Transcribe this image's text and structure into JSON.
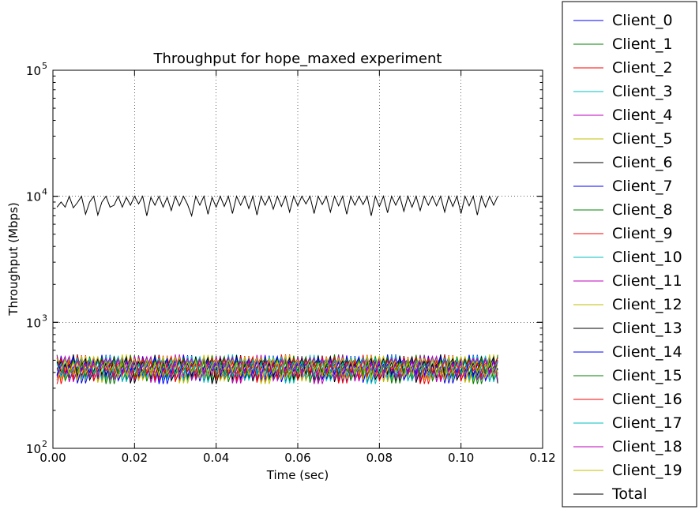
{
  "chart_data": {
    "type": "line",
    "title": "Throughput for hope_maxed experiment",
    "xlabel": "Time (sec)",
    "ylabel": "Throughput (Mbps)",
    "xlim": [
      0,
      0.12
    ],
    "ylim": [
      100,
      100000
    ],
    "yscale": "log",
    "grid": true,
    "legend_position": "outside-right",
    "x_ticks": [
      0,
      0.02,
      0.04,
      0.06,
      0.08,
      0.1,
      0.12
    ],
    "x_tick_labels": [
      "0.00",
      "0.02",
      "0.04",
      "0.06",
      "0.08",
      "0.10",
      "0.12"
    ],
    "y_ticks": [
      100,
      1000,
      10000,
      100000
    ],
    "y_tick_bases": [
      "10",
      "10",
      "10",
      "10"
    ],
    "y_tick_exps": [
      "2",
      "3",
      "4",
      "5"
    ],
    "x_start": 0.001,
    "x_step": 0.001,
    "client_pattern": [
      400,
      480,
      360,
      540,
      380,
      450,
      520,
      340,
      420,
      500
    ],
    "series": [
      {
        "name": "Client_0",
        "color": "#0000ff"
      },
      {
        "name": "Client_1",
        "color": "#008000"
      },
      {
        "name": "Client_2",
        "color": "#ff0000"
      },
      {
        "name": "Client_3",
        "color": "#00bfbf"
      },
      {
        "name": "Client_4",
        "color": "#bf00bf"
      },
      {
        "name": "Client_5",
        "color": "#bfbf00"
      },
      {
        "name": "Client_6",
        "color": "#000000"
      },
      {
        "name": "Client_7",
        "color": "#0000ff"
      },
      {
        "name": "Client_8",
        "color": "#008000"
      },
      {
        "name": "Client_9",
        "color": "#ff0000"
      },
      {
        "name": "Client_10",
        "color": "#00bfbf"
      },
      {
        "name": "Client_11",
        "color": "#bf00bf"
      },
      {
        "name": "Client_12",
        "color": "#bfbf00"
      },
      {
        "name": "Client_13",
        "color": "#000000"
      },
      {
        "name": "Client_14",
        "color": "#0000ff"
      },
      {
        "name": "Client_15",
        "color": "#008000"
      },
      {
        "name": "Client_16",
        "color": "#ff0000"
      },
      {
        "name": "Client_17",
        "color": "#00bfbf"
      },
      {
        "name": "Client_18",
        "color": "#bf00bf"
      },
      {
        "name": "Client_19",
        "color": "#bfbf00"
      },
      {
        "name": "Total",
        "color": "#000000"
      }
    ],
    "total_values": [
      8200,
      9000,
      8200,
      10000,
      8100,
      8900,
      10000,
      7200,
      9000,
      10000,
      7100,
      9000,
      10000,
      8200,
      8500,
      10000,
      8200,
      9800,
      8500,
      10000,
      8700,
      10000,
      7000,
      9800,
      8500,
      10000,
      8200,
      9800,
      7700,
      10000,
      8400,
      10000,
      8600,
      7000,
      10000,
      8500,
      10000,
      7200,
      9800,
      8200,
      10000,
      8300,
      10000,
      7300,
      10000,
      8500,
      10000,
      8000,
      10000,
      7100,
      10000,
      8500,
      10000,
      7900,
      10000,
      8300,
      10000,
      7500,
      10000,
      8400,
      10000,
      8700,
      10000,
      7300,
      10000,
      8600,
      10000,
      7500,
      10000,
      8400,
      10000,
      7200,
      10000,
      8500,
      10000,
      8600,
      10000,
      7000,
      10000,
      8300,
      10000,
      7400,
      10000,
      8500,
      10000,
      7600,
      10000,
      8200,
      10000,
      7700,
      10000,
      8500,
      10000,
      8400,
      10000,
      7500,
      10000,
      8300,
      10000,
      7300,
      10000,
      8400,
      10000,
      7100,
      10000,
      8200,
      10000,
      8500,
      10000
    ]
  }
}
